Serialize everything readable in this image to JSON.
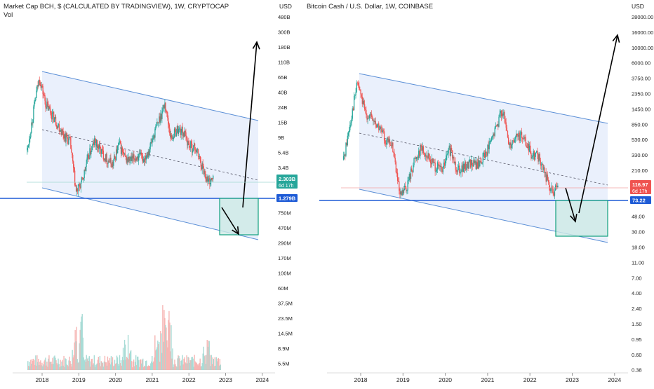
{
  "colors": {
    "up": "#26a69a",
    "down": "#ef5350",
    "channel": "#5b8fd6",
    "channel_fill": "#eaf0fc",
    "support": "#1e5bd6",
    "target_box_stroke": "#12a07f",
    "target_box_fill": "#cdeae5",
    "arrow": "#000000",
    "price_badge_left": "#26a69a",
    "price_badge_right": "#ef5350",
    "axis_text": "#222222"
  },
  "chart_data": [
    {
      "type": "candlestick",
      "title": "Market Cap BCH, $ (CALCULATED BY TRADINGVIEW), 1W, CRYPTOCAP",
      "sub_indicator": "Vol",
      "currency": "USD",
      "y_scale": "log",
      "y_ticks": [
        "480B",
        "300B",
        "180B",
        "110B",
        "65B",
        "40B",
        "24B",
        "15B",
        "9B",
        "5.4B",
        "3.4B",
        "2.1B",
        "1.3B",
        "750M",
        "470M",
        "290M",
        "170M",
        "100M",
        "60M",
        "37.5M",
        "23.5M",
        "14.5M",
        "8.9M",
        "5.5M"
      ],
      "price_ticks": [
        "480B",
        "300B",
        "180B",
        "110B",
        "65B",
        "40B",
        "24B",
        "15B",
        "9B",
        "5.4B",
        "3.4B"
      ],
      "volume_ticks": [
        "750M",
        "470M",
        "290M",
        "170M",
        "100M",
        "60M",
        "37.5M",
        "23.5M",
        "14.5M",
        "8.9M",
        "5.5M"
      ],
      "x_ticks": [
        "2018",
        "2019",
        "2020",
        "2021",
        "2022",
        "2023",
        "2024"
      ],
      "last_value": "2.303B",
      "bar_countdown": "6d 17h",
      "support_level": "1.279B",
      "series": [
        {
          "date": "2017-08",
          "value": 6.0
        },
        {
          "date": "2017-11",
          "value": 40.0
        },
        {
          "date": "2017-12",
          "value": 65.0
        },
        {
          "date": "2018-02",
          "value": 28.0
        },
        {
          "date": "2018-04",
          "value": 20.0
        },
        {
          "date": "2018-06",
          "value": 14.0
        },
        {
          "date": "2018-08",
          "value": 10.0
        },
        {
          "date": "2018-10",
          "value": 8.0
        },
        {
          "date": "2018-12",
          "value": 1.5
        },
        {
          "date": "2019-02",
          "value": 2.2
        },
        {
          "date": "2019-04",
          "value": 5.0
        },
        {
          "date": "2019-06",
          "value": 8.0
        },
        {
          "date": "2019-08",
          "value": 6.0
        },
        {
          "date": "2019-10",
          "value": 4.5
        },
        {
          "date": "2019-12",
          "value": 3.8
        },
        {
          "date": "2020-02",
          "value": 7.5
        },
        {
          "date": "2020-04",
          "value": 4.5
        },
        {
          "date": "2020-06",
          "value": 4.3
        },
        {
          "date": "2020-08",
          "value": 5.0
        },
        {
          "date": "2020-10",
          "value": 4.5
        },
        {
          "date": "2020-12",
          "value": 6.5
        },
        {
          "date": "2021-02",
          "value": 12.0
        },
        {
          "date": "2021-05",
          "value": 28.0
        },
        {
          "date": "2021-07",
          "value": 9.0
        },
        {
          "date": "2021-09",
          "value": 12.0
        },
        {
          "date": "2021-11",
          "value": 11.0
        },
        {
          "date": "2022-01",
          "value": 7.0
        },
        {
          "date": "2022-03",
          "value": 6.5
        },
        {
          "date": "2022-05",
          "value": 3.8
        },
        {
          "date": "2022-07",
          "value": 2.2
        },
        {
          "date": "2022-09",
          "value": 2.3
        }
      ]
    },
    {
      "type": "candlestick",
      "title": "Bitcoin Cash / U.S. Dollar, 1W, COINBASE",
      "currency": "USD",
      "y_scale": "log",
      "y_ticks": [
        "28000.00",
        "16000.00",
        "10000.00",
        "6000.00",
        "3750.00",
        "2350.00",
        "1450.00",
        "850.00",
        "530.00",
        "330.00",
        "210.00",
        "120.00",
        "73.00",
        "48.00",
        "30.00",
        "18.00",
        "11.00",
        "7.00",
        "4.00",
        "2.40",
        "1.50",
        "0.95",
        "0.60",
        "0.38"
      ],
      "x_ticks": [
        "2018",
        "2019",
        "2020",
        "2021",
        "2022",
        "2023",
        "2024"
      ],
      "last_value": "116.97",
      "bar_countdown": "6d 17h",
      "support_level": "73.22",
      "series": [
        {
          "date": "2017-08",
          "value": 300
        },
        {
          "date": "2017-11",
          "value": 2000
        },
        {
          "date": "2017-12",
          "value": 3500
        },
        {
          "date": "2018-02",
          "value": 1400
        },
        {
          "date": "2018-04",
          "value": 1100
        },
        {
          "date": "2018-06",
          "value": 850
        },
        {
          "date": "2018-08",
          "value": 560
        },
        {
          "date": "2018-10",
          "value": 450
        },
        {
          "date": "2018-12",
          "value": 90
        },
        {
          "date": "2019-02",
          "value": 130
        },
        {
          "date": "2019-04",
          "value": 290
        },
        {
          "date": "2019-06",
          "value": 450
        },
        {
          "date": "2019-08",
          "value": 320
        },
        {
          "date": "2019-10",
          "value": 250
        },
        {
          "date": "2019-12",
          "value": 210
        },
        {
          "date": "2020-02",
          "value": 420
        },
        {
          "date": "2020-04",
          "value": 240
        },
        {
          "date": "2020-06",
          "value": 230
        },
        {
          "date": "2020-08",
          "value": 280
        },
        {
          "date": "2020-10",
          "value": 250
        },
        {
          "date": "2020-12",
          "value": 350
        },
        {
          "date": "2021-02",
          "value": 550
        },
        {
          "date": "2021-05",
          "value": 1500
        },
        {
          "date": "2021-07",
          "value": 480
        },
        {
          "date": "2021-09",
          "value": 650
        },
        {
          "date": "2021-11",
          "value": 600
        },
        {
          "date": "2022-01",
          "value": 380
        },
        {
          "date": "2022-03",
          "value": 350
        },
        {
          "date": "2022-05",
          "value": 200
        },
        {
          "date": "2022-07",
          "value": 110
        },
        {
          "date": "2022-09",
          "value": 117
        }
      ]
    }
  ]
}
